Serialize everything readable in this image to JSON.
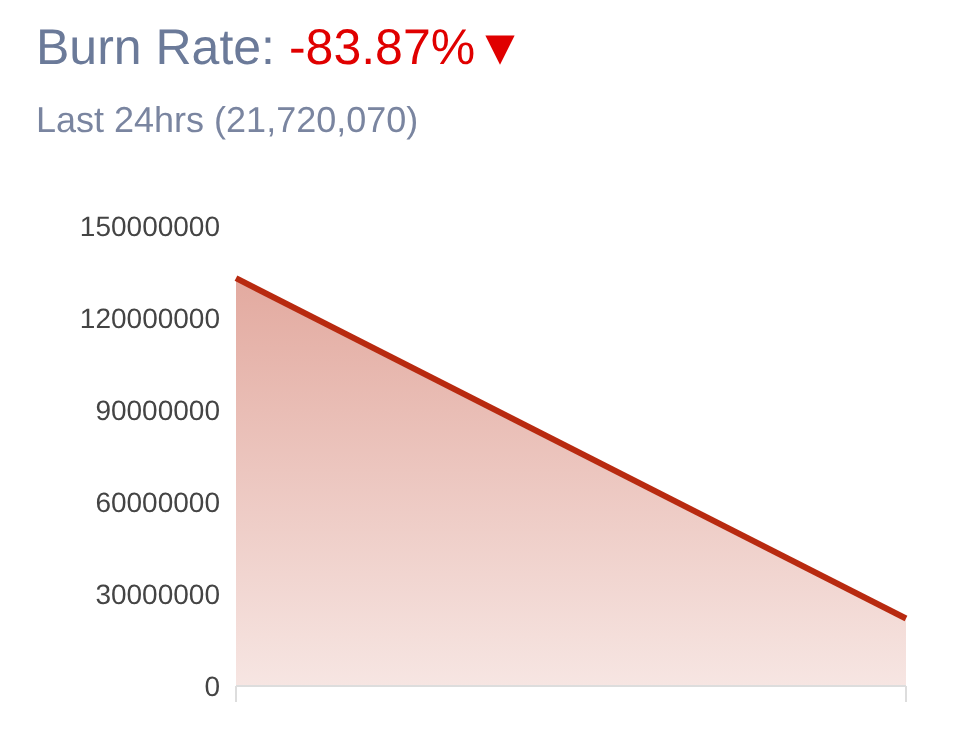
{
  "chart_data": {
    "type": "area",
    "title": "Burn Rate: -83.87%▼",
    "subtitle": "Last 24hrs (21,720,070)",
    "categories": [
      null,
      null
    ],
    "series": [
      {
        "color": "#b82a10",
        "values": [
          133000000,
          22000000
        ]
      }
    ],
    "ylim": [
      0,
      150000000
    ],
    "yticks": [
      0,
      30000000,
      60000000,
      90000000,
      120000000,
      150000000
    ],
    "grid": false,
    "legend": false,
    "marker": "none",
    "line_style": "solid"
  }
}
